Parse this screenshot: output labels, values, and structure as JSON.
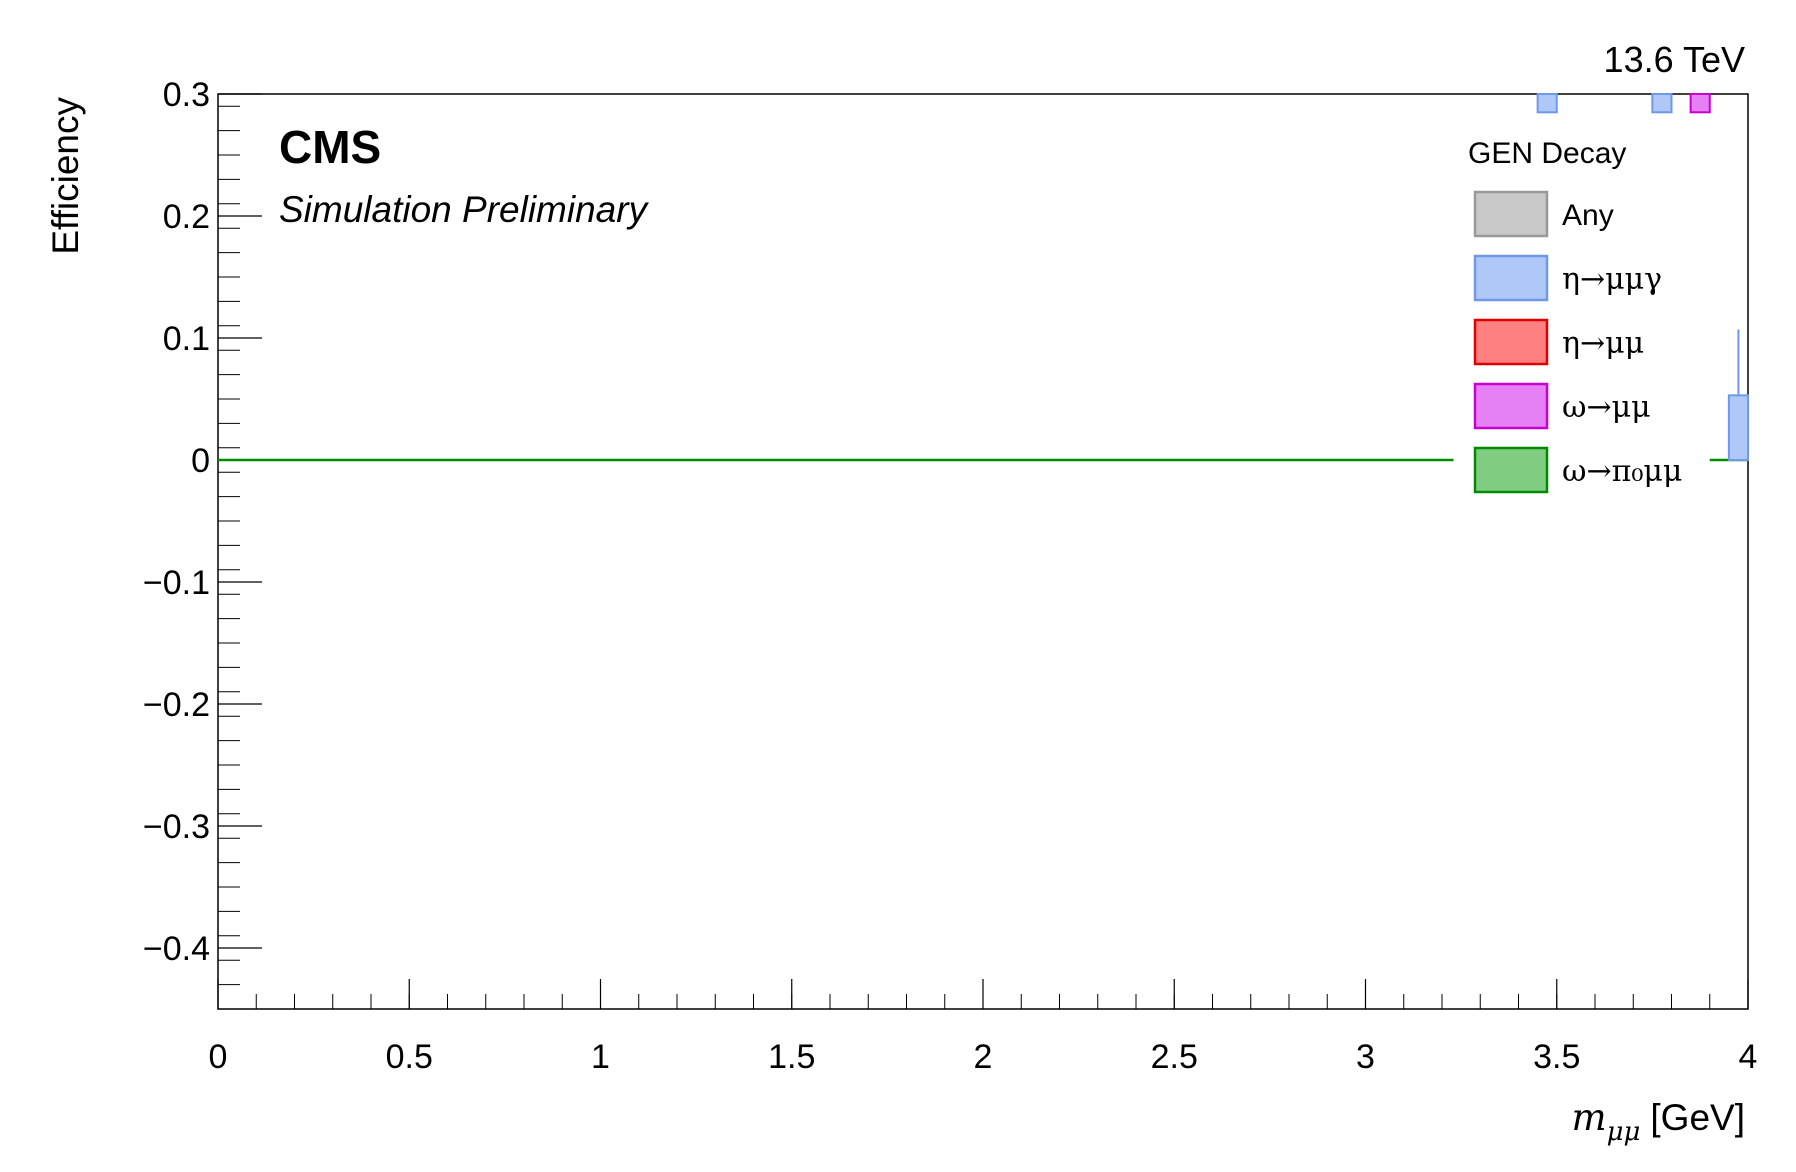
{
  "chart_data": {
    "type": "histogram",
    "energy_label": "13.6 TeV",
    "experiment": "CMS",
    "status": "Simulation Preliminary",
    "ylabel": "Efficiency",
    "xlabel_symbol": "m",
    "xlabel_subscript": "μμ",
    "xlabel_unit": "[GeV]",
    "xlim": [
      0,
      4
    ],
    "ylim": [
      -0.45,
      0.3
    ],
    "x_ticks": [
      0,
      0.5,
      1,
      1.5,
      2,
      2.5,
      3,
      3.5,
      4
    ],
    "x_tick_labels": [
      "0",
      "0.5",
      "1",
      "1.5",
      "2",
      "2.5",
      "3",
      "3.5",
      "4"
    ],
    "y_ticks": [
      -0.4,
      -0.3,
      -0.2,
      -0.1,
      0,
      0.1,
      0.2,
      0.3
    ],
    "y_tick_labels": [
      "−0.4",
      "−0.3",
      "−0.2",
      "−0.1",
      "0",
      "0.1",
      "0.2",
      "0.3"
    ],
    "legend": {
      "title": "GEN Decay",
      "placement": "top-right",
      "entries": [
        {
          "key": "any",
          "label": "Any",
          "fill": "#c8c8c8",
          "stroke": "#999999"
        },
        {
          "key": "eta_mumugamma",
          "label": "η→μμγ",
          "fill": "#b0c8f8",
          "stroke": "#6f98e8"
        },
        {
          "key": "eta_mumu",
          "label": "η→μμ",
          "fill": "#ff8080",
          "stroke": "#e00000"
        },
        {
          "key": "omega_mumu",
          "label": "ω→μμ",
          "fill": "#e680f5",
          "stroke": "#c800d0"
        },
        {
          "key": "omega_pi0mumu",
          "label": "ω→π₀μμ",
          "fill": "#80cc80",
          "stroke": "#008a00"
        }
      ]
    },
    "series": [
      {
        "key": "omega_pi0mumu",
        "line": [
          [
            0,
            0
          ],
          [
            3.23,
            0
          ]
        ],
        "line2": [
          [
            3.9,
            0
          ],
          [
            4.0,
            0
          ]
        ]
      },
      {
        "key": "eta_mumugamma",
        "bars": [
          {
            "x0": 3.45,
            "x1": 3.5,
            "y0": 0.285,
            "y1": 0.3
          },
          {
            "x0": 3.75,
            "x1": 3.8,
            "y0": 0.285,
            "y1": 0.3
          },
          {
            "x0": 3.95,
            "x1": 4.0,
            "y0": 0,
            "y1": 0.053
          }
        ],
        "errors": [
          {
            "x": 3.975,
            "y0": 0.053,
            "y1": 0.107
          }
        ]
      },
      {
        "key": "omega_mumu",
        "bars": [
          {
            "x0": 3.85,
            "x1": 3.9,
            "y0": 0.285,
            "y1": 0.3
          }
        ]
      }
    ]
  }
}
